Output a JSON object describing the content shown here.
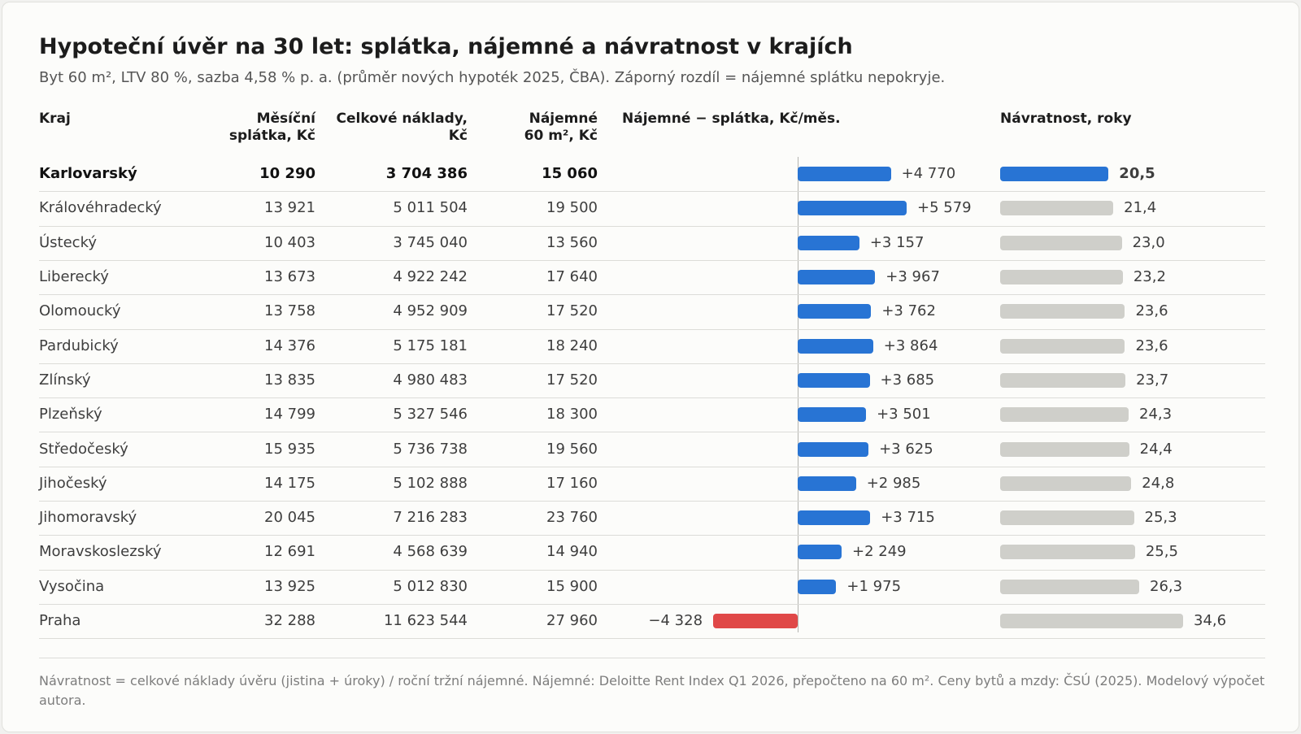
{
  "title": "Hypoteční úvěr na 30 let: splátka, nájemné a návratnost v krajích",
  "subtitle": "Byt 60 m², LTV 80 %, sazba 4,58 % p. a. (průměr nových hypoték 2025, ČBA). Záporný rozdíl = nájemné splátku nepokryje.",
  "headers": {
    "region": "Kraj",
    "payment_1": "Měsíční",
    "payment_2": "splátka, Kč",
    "total_1": "Celkové náklady,",
    "total_2": "Kč",
    "rent_1": "Nájemné",
    "rent_2": "60 m², Kč",
    "diff": "Nájemné − splátka, Kč/měs.",
    "payback": "Návratnost, roky"
  },
  "colors": {
    "positive": "#2874d4",
    "negative": "#e04848",
    "highlight": "#2874d4",
    "neutral": "#cfcfca"
  },
  "chart_data": {
    "type": "table",
    "highlighted_row": "Karlovarský",
    "diff_range": [
      -4328,
      5579
    ],
    "payback_range": [
      0,
      34.6
    ],
    "rows": [
      {
        "region": "Karlovarský",
        "payment": "10 290",
        "total": "3 704 386",
        "rent": "15 060",
        "diff": 4770,
        "diff_label": "+4 770",
        "payback": 20.5,
        "payback_label": "20,5"
      },
      {
        "region": "Královéhradecký",
        "payment": "13 921",
        "total": "5 011 504",
        "rent": "19 500",
        "diff": 5579,
        "diff_label": "+5 579",
        "payback": 21.4,
        "payback_label": "21,4"
      },
      {
        "region": "Ústecký",
        "payment": "10 403",
        "total": "3 745 040",
        "rent": "13 560",
        "diff": 3157,
        "diff_label": "+3 157",
        "payback": 23.0,
        "payback_label": "23,0"
      },
      {
        "region": "Liberecký",
        "payment": "13 673",
        "total": "4 922 242",
        "rent": "17 640",
        "diff": 3967,
        "diff_label": "+3 967",
        "payback": 23.2,
        "payback_label": "23,2"
      },
      {
        "region": "Olomoucký",
        "payment": "13 758",
        "total": "4 952 909",
        "rent": "17 520",
        "diff": 3762,
        "diff_label": "+3 762",
        "payback": 23.6,
        "payback_label": "23,6"
      },
      {
        "region": "Pardubický",
        "payment": "14 376",
        "total": "5 175 181",
        "rent": "18 240",
        "diff": 3864,
        "diff_label": "+3 864",
        "payback": 23.6,
        "payback_label": "23,6"
      },
      {
        "region": "Zlínský",
        "payment": "13 835",
        "total": "4 980 483",
        "rent": "17 520",
        "diff": 3685,
        "diff_label": "+3 685",
        "payback": 23.7,
        "payback_label": "23,7"
      },
      {
        "region": "Plzeňský",
        "payment": "14 799",
        "total": "5 327 546",
        "rent": "18 300",
        "diff": 3501,
        "diff_label": "+3 501",
        "payback": 24.3,
        "payback_label": "24,3"
      },
      {
        "region": "Středočeský",
        "payment": "15 935",
        "total": "5 736 738",
        "rent": "19 560",
        "diff": 3625,
        "diff_label": "+3 625",
        "payback": 24.4,
        "payback_label": "24,4"
      },
      {
        "region": "Jihočeský",
        "payment": "14 175",
        "total": "5 102 888",
        "rent": "17 160",
        "diff": 2985,
        "diff_label": "+2 985",
        "payback": 24.8,
        "payback_label": "24,8"
      },
      {
        "region": "Jihomoravský",
        "payment": "20 045",
        "total": "7 216 283",
        "rent": "23 760",
        "diff": 3715,
        "diff_label": "+3 715",
        "payback": 25.3,
        "payback_label": "25,3"
      },
      {
        "region": "Moravskoslezský",
        "payment": "12 691",
        "total": "4 568 639",
        "rent": "14 940",
        "diff": 2249,
        "diff_label": "+2 249",
        "payback": 25.5,
        "payback_label": "25,5"
      },
      {
        "region": "Vysočina",
        "payment": "13 925",
        "total": "5 012 830",
        "rent": "15 900",
        "diff": 1975,
        "diff_label": "+1 975",
        "payback": 26.3,
        "payback_label": "26,3"
      },
      {
        "region": "Praha",
        "payment": "32 288",
        "total": "11 623 544",
        "rent": "27 960",
        "diff": -4328,
        "diff_label": "−4 328",
        "payback": 34.6,
        "payback_label": "34,6"
      }
    ]
  },
  "footnote": "Návratnost = celkové náklady úvěru (jistina + úroky) / roční tržní nájemné. Nájemné: Deloitte Rent Index Q1 2026, přepočteno na 60 m². Ceny bytů a mzdy: ČSÚ (2025). Modelový výpočet autora."
}
